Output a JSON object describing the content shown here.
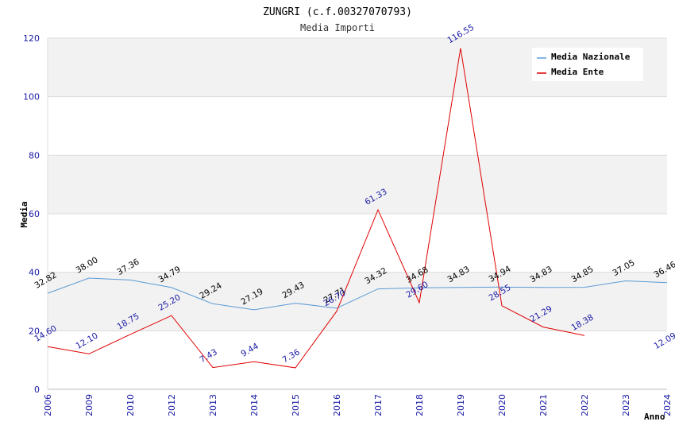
{
  "chart_data": {
    "type": "line",
    "title": "ZUNGRI (c.f.00327070793)",
    "subtitle": "Media Importi",
    "xlabel": "Anno",
    "ylabel": "Media",
    "ylim": [
      0,
      120
    ],
    "yticks": [
      "0",
      "20",
      "40",
      "60",
      "80",
      "100",
      "120"
    ],
    "categories": [
      "2006",
      "2009",
      "2010",
      "2012",
      "2013",
      "2014",
      "2015",
      "2016",
      "2017",
      "2018",
      "2019",
      "2020",
      "2021",
      "2022",
      "2023",
      "2024"
    ],
    "series": [
      {
        "name": "Media Nazionale",
        "color": "#5b9bd5",
        "values": [
          32.82,
          38.0,
          37.36,
          34.79,
          29.24,
          27.19,
          29.43,
          27.71,
          34.32,
          34.68,
          34.83,
          34.94,
          34.83,
          34.85,
          37.05,
          36.46
        ],
        "labels": [
          "32.82",
          "38.00",
          "37.36",
          "34.79",
          "29.24",
          "27.19",
          "29.43",
          "27.71",
          "34.32",
          "34.68",
          "34.83",
          "34.94",
          "34.83",
          "34.85",
          "37.05",
          "36.46"
        ]
      },
      {
        "name": "Media Ente",
        "color": "#e00000",
        "values": [
          14.6,
          12.1,
          18.75,
          25.2,
          7.43,
          9.44,
          7.36,
          26.7,
          61.33,
          29.6,
          116.55,
          28.55,
          21.29,
          18.38,
          null,
          null
        ],
        "labels": [
          "14.60",
          "12.10",
          "18.75",
          "25.20",
          "7.43",
          "9.44",
          "7.36",
          "26.70",
          "61.33",
          "29.60",
          "116.55",
          "28.55",
          "21.29",
          "18.38",
          null,
          "12.09"
        ],
        "extra_label_value": 12.09
      }
    ],
    "grid": true,
    "legend": "top-right"
  }
}
